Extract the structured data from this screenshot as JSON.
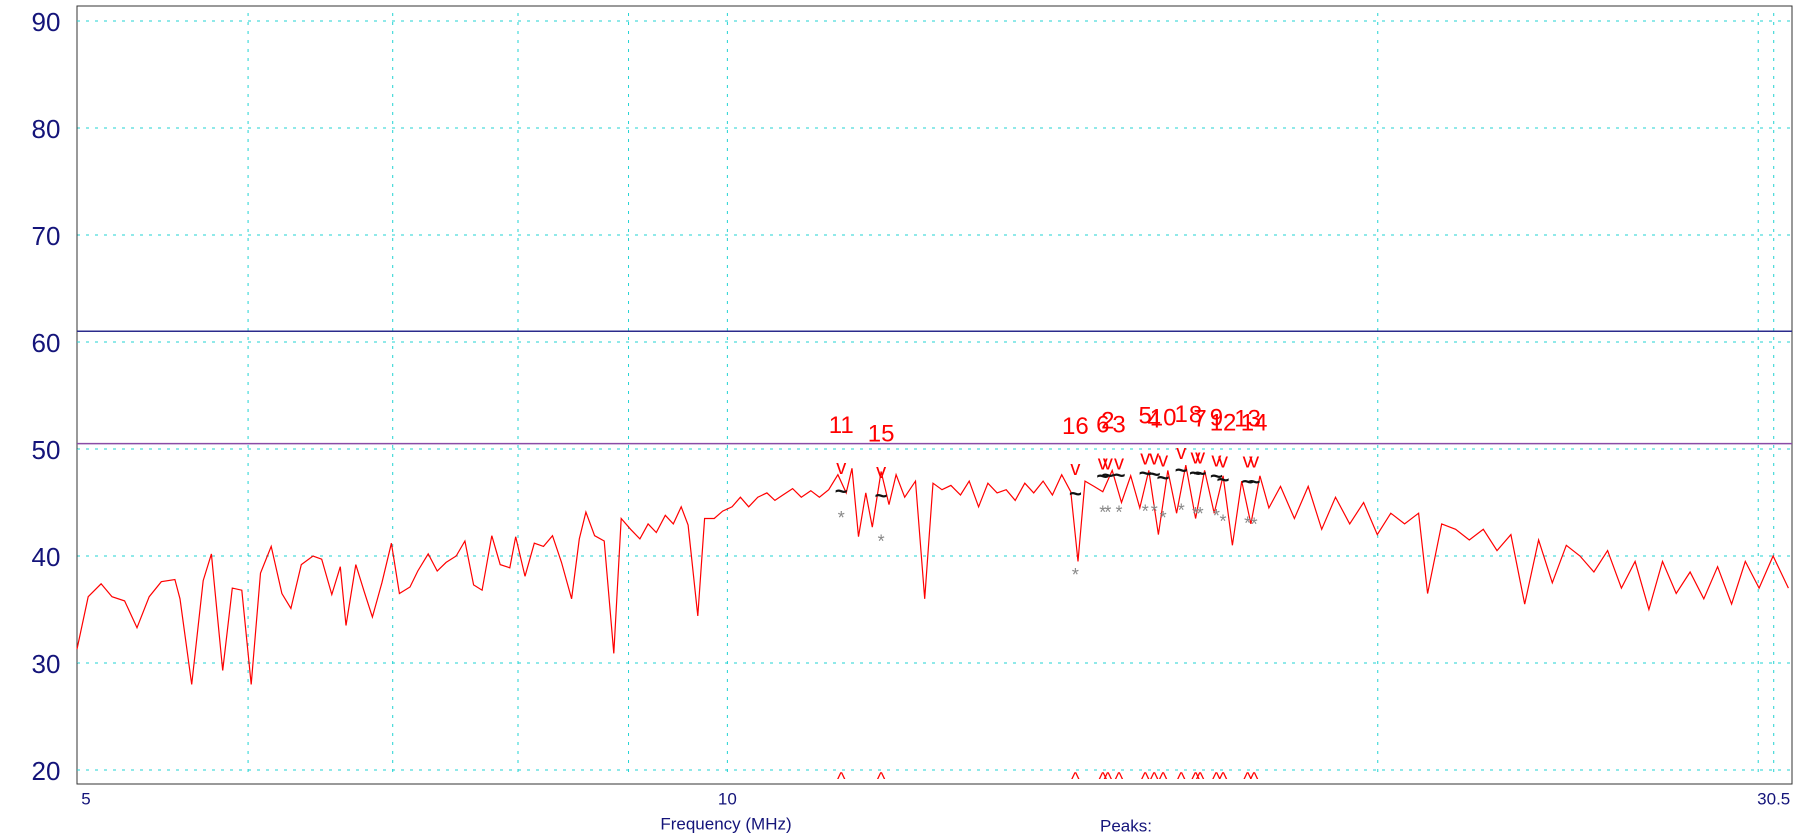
{
  "chart_data": {
    "type": "line",
    "xlabel": "Frequency (MHz)",
    "footer": "Peaks:",
    "xscale": "log",
    "xlim": [
      5,
      31.1
    ],
    "xticks": [
      5,
      10,
      30.5
    ],
    "xminor": [
      6,
      7,
      8,
      9,
      20,
      30
    ],
    "ylim": [
      20,
      90
    ],
    "yticks": [
      20,
      30,
      40,
      50,
      60,
      70,
      80,
      90
    ],
    "grid": true,
    "limits": [
      {
        "value": 61,
        "color": "#2b2b8c"
      },
      {
        "value": 50.5,
        "color": "#8a4ca6"
      }
    ],
    "series": [
      {
        "color": "#ff0000",
        "x": [
          5.0,
          5.06,
          5.13,
          5.19,
          5.26,
          5.33,
          5.4,
          5.47,
          5.55,
          5.58,
          5.65,
          5.72,
          5.77,
          5.84,
          5.9,
          5.96,
          6.02,
          6.08,
          6.15,
          6.22,
          6.28,
          6.35,
          6.43,
          6.49,
          6.56,
          6.62,
          6.66,
          6.73,
          6.79,
          6.85,
          6.92,
          6.99,
          7.05,
          7.13,
          7.19,
          7.27,
          7.34,
          7.41,
          7.49,
          7.56,
          7.63,
          7.7,
          7.78,
          7.85,
          7.93,
          7.98,
          8.06,
          8.14,
          8.22,
          8.3,
          8.38,
          8.47,
          8.54,
          8.6,
          8.68,
          8.77,
          8.86,
          8.93,
          9.02,
          9.11,
          9.19,
          9.27,
          9.36,
          9.44,
          9.52,
          9.59,
          9.69,
          9.76,
          9.86,
          9.95,
          10.05,
          10.14,
          10.23,
          10.33,
          10.43,
          10.52,
          10.61,
          10.72,
          10.82,
          10.93,
          11.03,
          11.14,
          11.25,
          11.35,
          11.42,
          11.5,
          11.59,
          11.67,
          11.78,
          11.88,
          11.97,
          12.08,
          12.22,
          12.34,
          12.45,
          12.57,
          12.69,
          12.82,
          12.94,
          13.07,
          13.2,
          13.33,
          13.46,
          13.59,
          13.73,
          13.86,
          14.0,
          14.14,
          14.28,
          14.42,
          14.53,
          14.64,
          14.78,
          14.92,
          15.07,
          15.22,
          15.37,
          15.52,
          15.67,
          15.83,
          15.99,
          16.14,
          16.3,
          16.47,
          16.63,
          16.8,
          16.96,
          17.13,
          17.3,
          17.47,
          17.64,
          17.81,
          18.03,
          18.3,
          18.57,
          18.84,
          19.12,
          19.41,
          19.7,
          19.99,
          20.28,
          20.58,
          20.89,
          21.09,
          21.41,
          21.73,
          22.05,
          22.38,
          22.71,
          23.05,
          23.39,
          23.74,
          24.09,
          24.45,
          24.81,
          25.18,
          25.55,
          25.93,
          26.31,
          26.7,
          27.09,
          27.49,
          27.9,
          28.31,
          28.73,
          29.16,
          29.59,
          30.03,
          30.48,
          30.98
        ],
        "values": [
          31.3,
          36.2,
          37.4,
          36.2,
          35.8,
          33.3,
          36.2,
          37.6,
          37.8,
          36.0,
          28.0,
          37.7,
          40.2,
          29.3,
          37.0,
          36.8,
          28.0,
          38.4,
          40.9,
          36.5,
          35.1,
          39.2,
          40.0,
          39.7,
          36.4,
          39.0,
          33.5,
          39.2,
          36.7,
          34.3,
          37.5,
          41.2,
          36.5,
          37.1,
          38.6,
          40.2,
          38.6,
          39.4,
          40.0,
          41.4,
          37.3,
          36.8,
          41.9,
          39.2,
          38.9,
          41.8,
          38.1,
          41.2,
          40.9,
          41.9,
          39.4,
          36.0,
          41.6,
          44.1,
          41.9,
          41.4,
          30.9,
          43.5,
          42.5,
          41.6,
          43.0,
          42.2,
          43.8,
          43.0,
          44.6,
          42.9,
          34.4,
          43.5,
          43.5,
          44.2,
          44.6,
          45.5,
          44.6,
          45.5,
          45.9,
          45.2,
          45.7,
          46.3,
          45.5,
          46.1,
          45.5,
          46.2,
          47.6,
          45.9,
          48.2,
          41.8,
          45.9,
          42.7,
          47.9,
          44.8,
          47.6,
          45.5,
          47.0,
          36.0,
          46.8,
          46.2,
          46.6,
          45.7,
          47.0,
          44.6,
          46.8,
          45.9,
          46.2,
          45.2,
          46.8,
          45.9,
          47.0,
          45.7,
          47.6,
          46.0,
          39.5,
          47.0,
          46.5,
          46.0,
          48.0,
          45.0,
          47.5,
          44.5,
          48.0,
          42.0,
          48.0,
          44.0,
          48.5,
          43.5,
          48.0,
          44.0,
          47.5,
          41.0,
          47.0,
          43.0,
          47.5,
          44.5,
          46.5,
          43.5,
          46.5,
          42.5,
          45.5,
          43.0,
          45.0,
          42.0,
          44.0,
          43.0,
          44.0,
          36.5,
          43.0,
          42.5,
          41.5,
          42.5,
          40.5,
          42.0,
          35.5,
          41.5,
          37.5,
          41.0,
          40.0,
          38.5,
          40.5,
          37.0,
          39.5,
          35.0,
          39.5,
          36.5,
          38.5,
          36.0,
          39.0,
          35.5,
          39.5,
          37.0,
          40.0,
          37.0
        ]
      }
    ],
    "peaks": [
      {
        "label": "11",
        "freq": 11.29,
        "value": 47.6,
        "qp": 45.9,
        "avg": 43.8
      },
      {
        "label": "15",
        "freq": 11.78,
        "value": 47.2,
        "qp": 45.5,
        "avg": 41.6
      },
      {
        "label": "16",
        "freq": 14.49,
        "value": 47.5,
        "qp": 45.7,
        "avg": 38.5
      },
      {
        "label": "6",
        "freq": 14.92,
        "value": 48.0,
        "qp": 47.3,
        "avg": 44.3
      },
      {
        "label": "2",
        "freq": 15.0,
        "value": 48.0,
        "qp": 47.4,
        "avg": 44.3
      },
      {
        "label": "3",
        "freq": 15.18,
        "value": 48.0,
        "qp": 47.4,
        "avg": 44.3
      },
      {
        "label": "5",
        "freq": 15.61,
        "value": 48.5,
        "qp": 47.6,
        "avg": 44.4
      },
      {
        "label": "4",
        "freq": 15.76,
        "value": 48.5,
        "qp": 47.5,
        "avg": 44.4
      },
      {
        "label": "10",
        "freq": 15.91,
        "value": 48.3,
        "qp": 47.2,
        "avg": 43.8
      },
      {
        "label": "1",
        "freq": 16.22,
        "value": 49.0,
        "qp": 47.9,
        "avg": 44.5
      },
      {
        "label": "8",
        "freq": 16.47,
        "value": 48.6,
        "qp": 47.6,
        "avg": 44.2
      },
      {
        "label": "7",
        "freq": 16.55,
        "value": 48.6,
        "qp": 47.6,
        "avg": 44.2
      },
      {
        "label": "9",
        "freq": 16.84,
        "value": 48.3,
        "qp": 47.3,
        "avg": 44.0
      },
      {
        "label": "12",
        "freq": 16.96,
        "value": 48.2,
        "qp": 47.0,
        "avg": 43.5
      },
      {
        "label": "13",
        "freq": 17.41,
        "value": 48.2,
        "qp": 46.8,
        "avg": 43.3
      },
      {
        "label": "14",
        "freq": 17.53,
        "value": 48.2,
        "qp": 46.8,
        "avg": 43.2
      }
    ]
  }
}
